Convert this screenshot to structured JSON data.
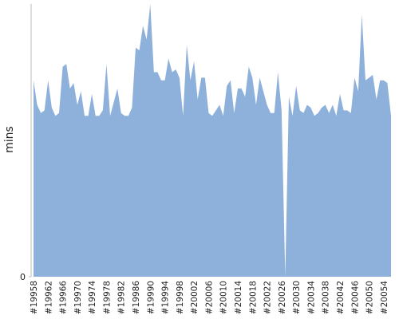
{
  "chart_data": {
    "type": "area",
    "y_label": "mins",
    "categories": [
      "#19958",
      null,
      null,
      null,
      "#19962",
      null,
      null,
      null,
      "#19966",
      null,
      null,
      null,
      "#19970",
      null,
      null,
      null,
      "#19974",
      null,
      null,
      null,
      "#19978",
      null,
      null,
      null,
      "#19982",
      null,
      null,
      null,
      "#19986",
      null,
      null,
      null,
      "#19990",
      null,
      null,
      null,
      "#19994",
      null,
      null,
      null,
      "#19998",
      null,
      null,
      null,
      "#20002",
      null,
      null,
      null,
      "#20006",
      null,
      null,
      null,
      "#20010",
      null,
      null,
      null,
      "#20014",
      null,
      null,
      null,
      "#20018",
      null,
      null,
      null,
      "#20022",
      null,
      null,
      null,
      "#20026",
      null,
      null,
      null,
      "#20030",
      null,
      null,
      null,
      "#20034",
      null,
      null,
      null,
      "#20038",
      null,
      null,
      null,
      "#20042",
      null,
      null,
      null,
      "#20046",
      null,
      null,
      null,
      "#20050",
      null,
      null,
      null,
      "#20054",
      null,
      null
    ],
    "series": [
      {
        "color": "#8eb1db",
        "values": [
          72,
          63,
          60,
          61,
          72,
          62,
          59,
          60,
          77,
          78,
          69,
          71,
          63,
          68,
          59,
          59,
          67,
          59,
          59,
          61,
          78,
          59,
          64,
          69,
          60,
          59,
          59,
          62,
          84,
          83,
          92,
          87,
          100,
          75,
          75,
          72,
          72,
          80,
          75,
          76,
          73,
          59,
          85,
          72,
          79,
          65,
          73,
          73,
          60,
          59,
          61,
          63,
          59,
          70,
          72,
          60,
          69,
          69,
          66,
          77,
          73,
          63,
          73,
          68,
          63,
          60,
          60,
          75,
          61,
          0,
          66,
          59,
          70,
          61,
          60,
          63,
          62,
          59,
          60,
          62,
          63,
          60,
          63,
          59,
          67,
          61,
          61,
          60,
          73,
          68,
          96,
          72,
          73,
          74,
          65,
          72,
          72,
          71,
          59
        ]
      },
      {
        "color": "#e8443a",
        "values": [
          null,
          null,
          null,
          null,
          null,
          null,
          null,
          null,
          null,
          null,
          null,
          null,
          null,
          null,
          null,
          null,
          null,
          null,
          null,
          null,
          null,
          null,
          null,
          null,
          null,
          null,
          null,
          null,
          null,
          null,
          null,
          null,
          null,
          null,
          null,
          null,
          null,
          null,
          null,
          null,
          null,
          null,
          null,
          null,
          null,
          null,
          null,
          null,
          null,
          null,
          null,
          null,
          null,
          null,
          null,
          null,
          null,
          null,
          null,
          null,
          null,
          null,
          null,
          null,
          null,
          null,
          null,
          null,
          null,
          0,
          null,
          null,
          null,
          null,
          null,
          null,
          null,
          null,
          null,
          null,
          null,
          null,
          null,
          null,
          null,
          null,
          null,
          null,
          null,
          null,
          null,
          null,
          null,
          null,
          null,
          null,
          null,
          null,
          null
        ]
      }
    ],
    "ylim": [
      0,
      100
    ],
    "yticks": [
      0
    ]
  }
}
